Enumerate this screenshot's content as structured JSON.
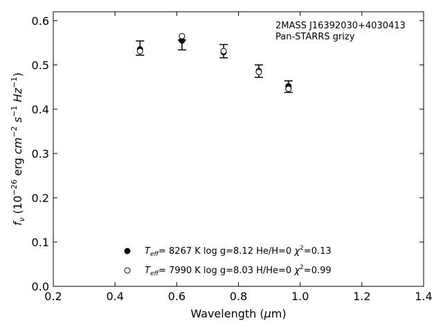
{
  "chart_data": {
    "type": "scatter",
    "xlabel": "Wavelength (μm)",
    "xlabel_prefix": "Wavelength (",
    "xlabel_mu": "μ",
    "xlabel_suffix": "m)",
    "ylabel_f": "f",
    "ylabel_nu": "ν",
    "ylabel_open": " (10",
    "ylabel_exp26": "−26",
    "ylabel_erg": " erg ",
    "ylabel_cm": "cm",
    "ylabel_exp2": "−2",
    "ylabel_s": " s",
    "ylabel_exp1a": "−1",
    "ylabel_hz": " Hz",
    "ylabel_exp1b": "−1",
    "ylabel_close": ")",
    "xlim": [
      0.2,
      1.4
    ],
    "ylim": [
      0.0,
      0.62
    ],
    "xticks": [
      "0.2",
      "0.4",
      "0.6",
      "0.8",
      "1.0",
      "1.2",
      "1.4"
    ],
    "yticks": [
      "0.0",
      "0.1",
      "0.2",
      "0.3",
      "0.4",
      "0.5",
      "0.6"
    ],
    "annotation_lines": [
      "2MASS J16392030+4030413",
      "Pan-STARRS grizy"
    ],
    "observed": {
      "x": [
        0.481,
        0.617,
        0.752,
        0.866,
        0.962
      ],
      "y": [
        0.538,
        0.545,
        0.531,
        0.486,
        0.451
      ],
      "yerr": [
        0.016,
        0.011,
        0.015,
        0.014,
        0.013
      ]
    },
    "series": [
      {
        "marker": "filled",
        "x": [
          0.481,
          0.617,
          0.752,
          0.866,
          0.962
        ],
        "y": [
          0.535,
          0.555,
          0.529,
          0.486,
          0.452
        ],
        "legend": {
          "teff": "8267 K",
          "logg": "log g=8.12",
          "comp": "He/H=0",
          "chi2": "0.13"
        }
      },
      {
        "marker": "open",
        "x": [
          0.481,
          0.617,
          0.752,
          0.866,
          0.962
        ],
        "y": [
          0.531,
          0.565,
          0.531,
          0.484,
          0.446
        ],
        "legend": {
          "teff": "7990 K",
          "logg": "log g=8.03",
          "comp": "H/He=0",
          "chi2": "0.99"
        }
      }
    ],
    "legend_labels": {
      "T": "T",
      "eff": "eff",
      "eq": "=",
      "chi": "χ",
      "two": "2",
      "chieq": "="
    },
    "legend_location": "bottom-center",
    "grid": false
  }
}
